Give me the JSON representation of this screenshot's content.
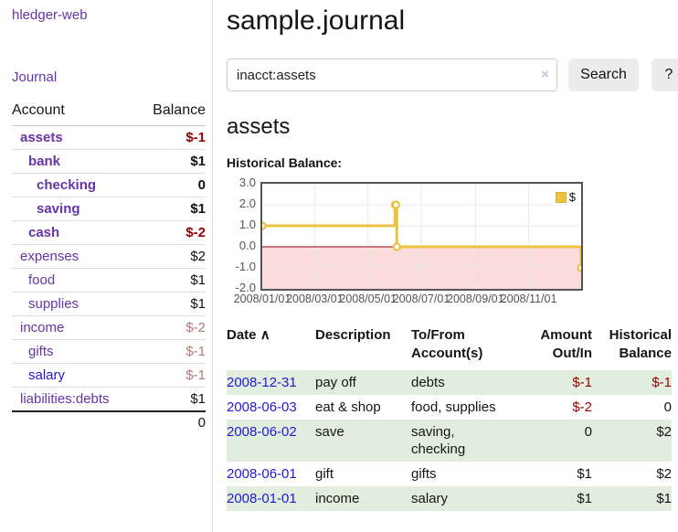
{
  "colors": {
    "link_purple": "#6633a8",
    "link_blue": "#2119d6",
    "negative_strong": "#990000",
    "negative_muted": "#b87878",
    "row_shade_green": "#e1eedd",
    "series_yellow": "#edc240",
    "zero_line": "#8b0000",
    "negative_region": "#fbdcdc",
    "grid_line": "#e8e8e8",
    "chart_border": "#545454",
    "button_bg": "#ececec"
  },
  "sidebar": {
    "brand": "hledger-web",
    "journal_link": "Journal",
    "accounts_table": {
      "headers": {
        "account": "Account",
        "balance": "Balance"
      },
      "rows": [
        {
          "name": "assets",
          "indent": 0,
          "bold": true,
          "link": "purple",
          "balance": "$-1",
          "balance_style": "neg-strong"
        },
        {
          "name": "bank",
          "indent": 1,
          "bold": true,
          "link": "purple",
          "balance": "$1",
          "balance_style": "pos"
        },
        {
          "name": "checking",
          "indent": 2,
          "bold": true,
          "link": "purple",
          "balance": "0",
          "balance_style": "pos"
        },
        {
          "name": "saving",
          "indent": 2,
          "bold": true,
          "link": "purple",
          "balance": "$1",
          "balance_style": "pos"
        },
        {
          "name": "cash",
          "indent": 1,
          "bold": true,
          "link": "purple",
          "balance": "$-2",
          "balance_style": "neg-strong"
        },
        {
          "name": "expenses",
          "indent": 0,
          "bold": false,
          "link": "purple",
          "balance": "$2",
          "balance_style": "pos"
        },
        {
          "name": "food",
          "indent": 1,
          "bold": false,
          "link": "purple",
          "balance": "$1",
          "balance_style": "pos"
        },
        {
          "name": "supplies",
          "indent": 1,
          "bold": false,
          "link": "purple",
          "balance": "$1",
          "balance_style": "pos"
        },
        {
          "name": "income",
          "indent": 0,
          "bold": false,
          "link": "purple",
          "balance": "$-2",
          "balance_style": "neg-muted"
        },
        {
          "name": "gifts",
          "indent": 1,
          "bold": false,
          "link": "purple",
          "balance": "$-1",
          "balance_style": "neg-muted"
        },
        {
          "name": "salary",
          "indent": 1,
          "bold": false,
          "link": "blue",
          "balance": "$-1",
          "balance_style": "neg-muted"
        },
        {
          "name": "liabilities:debts",
          "indent": 0,
          "bold": false,
          "link": "purple",
          "balance": "$1",
          "balance_style": "pos"
        }
      ],
      "total": "0"
    }
  },
  "main": {
    "title": "sample.journal",
    "search": {
      "value": "inacct:assets",
      "clear_icon": "×",
      "search_button": "Search",
      "help_button": "?"
    },
    "account_heading": "assets",
    "chart_label": "Historical Balance:"
  },
  "chart_data": {
    "type": "line",
    "step": true,
    "title": "Historical Balance:",
    "series": [
      {
        "name": "$",
        "color": "#edc240",
        "points": [
          {
            "date": "2008-01-01",
            "value": 1
          },
          {
            "date": "2008-06-01",
            "value": 2
          },
          {
            "date": "2008-06-02",
            "value": 2
          },
          {
            "date": "2008-06-03",
            "value": 0
          },
          {
            "date": "2008-12-31",
            "value": -1
          }
        ]
      }
    ],
    "xlim": [
      "2008-01-01",
      "2008-12-31"
    ],
    "ylim": [
      -2,
      3
    ],
    "y_ticks": [
      "3.0",
      "2.0",
      "1.0",
      "0.0",
      "-1.0",
      "-2.0"
    ],
    "x_ticks": [
      "2008/01/01",
      "2008/03/01",
      "2008/05/01",
      "2008/07/01",
      "2008/09/01",
      "2008/11/01"
    ],
    "legend": "$",
    "legend_position": "top-right",
    "grid": true,
    "negative_region_shaded": true
  },
  "register": {
    "headers": {
      "date": "Date",
      "sort_icon": "∧",
      "description": "Description",
      "accounts": "To/From Account(s)",
      "amount": "Amount Out/In",
      "balance": "Historical Balance"
    },
    "rows": [
      {
        "date": "2008-12-31",
        "description": "pay off",
        "accounts": "debts",
        "amount": "$-1",
        "amount_neg": true,
        "balance": "$-1",
        "balance_neg": true,
        "shaded": true
      },
      {
        "date": "2008-06-03",
        "description": "eat & shop",
        "accounts": "food, supplies",
        "amount": "$-2",
        "amount_neg": true,
        "balance": "0",
        "balance_neg": false,
        "shaded": false
      },
      {
        "date": "2008-06-02",
        "description": "save",
        "accounts": "saving, checking",
        "amount": "0",
        "amount_neg": false,
        "balance": "$2",
        "balance_neg": false,
        "shaded": true
      },
      {
        "date": "2008-06-01",
        "description": "gift",
        "accounts": "gifts",
        "amount": "$1",
        "amount_neg": false,
        "balance": "$2",
        "balance_neg": false,
        "shaded": false
      },
      {
        "date": "2008-01-01",
        "description": "income",
        "accounts": "salary",
        "amount": "$1",
        "amount_neg": false,
        "balance": "$1",
        "balance_neg": false,
        "shaded": true
      }
    ]
  }
}
